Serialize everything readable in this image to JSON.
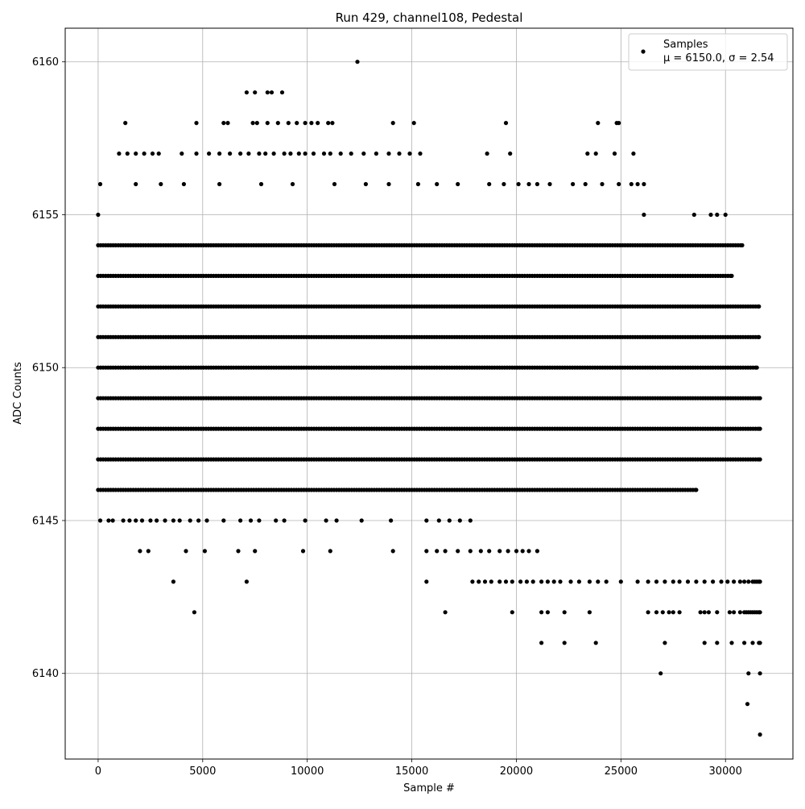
{
  "chart_data": {
    "type": "scatter",
    "title": "Run 429, channel108, Pedestal",
    "xlabel": "Sample #",
    "ylabel": "ADC Counts",
    "xlim": [
      -1575,
      33225
    ],
    "ylim": [
      6137.2,
      6161.1
    ],
    "xticks": [
      0,
      5000,
      10000,
      15000,
      20000,
      25000,
      30000
    ],
    "yticks": [
      6140,
      6145,
      6150,
      6155,
      6160
    ],
    "grid": true,
    "legend_position": "top-right",
    "marker_color": "#000000",
    "series": [
      {
        "name": "Samples",
        "stats_label": "μ = 6150.0, σ = 2.54"
      }
    ],
    "levels": [
      {
        "y": 6138,
        "x": [
          31650
        ]
      },
      {
        "y": 6139,
        "x": [
          31050
        ]
      },
      {
        "y": 6140,
        "x": [
          26900,
          31100,
          31650
        ]
      },
      {
        "y": 6141,
        "x": [
          21200,
          22300,
          23800,
          27100,
          29000,
          29600,
          30300,
          30900,
          31300,
          31600,
          31650
        ]
      },
      {
        "y": 6142,
        "x": [
          4600,
          16600,
          19800,
          21200,
          21500,
          22300,
          23500,
          26300,
          26700,
          27000,
          27300,
          27500,
          27800,
          28800,
          29000,
          29200,
          29600,
          30200,
          30400,
          30700,
          30900,
          31000,
          31100,
          31200,
          31300,
          31400,
          31500,
          31600,
          31650
        ]
      },
      {
        "y": 6143,
        "x": [
          3600,
          7100,
          15700,
          17900,
          18200,
          18500,
          18800,
          19200,
          19500,
          19800,
          20200,
          20500,
          20800,
          21200,
          21500,
          21800,
          22100,
          22600,
          23000,
          23500,
          23900,
          24300,
          25000,
          25800,
          26300,
          26700,
          27100,
          27500,
          27800,
          28200,
          28600,
          29000,
          29400,
          29800,
          30100,
          30400,
          30700,
          30900,
          31100,
          31300,
          31400,
          31500,
          31600,
          31650
        ]
      },
      {
        "y": 6144,
        "x": [
          2000,
          2400,
          4200,
          5100,
          6700,
          7500,
          9800,
          11100,
          14100,
          15700,
          16200,
          16600,
          17200,
          17800,
          18300,
          18700,
          19200,
          19600,
          20000,
          20300,
          20600,
          21000
        ]
      },
      {
        "y": 6145,
        "x": [
          100,
          500,
          700,
          1200,
          1500,
          1800,
          2100,
          2500,
          2800,
          3200,
          3600,
          3900,
          4400,
          4800,
          5200,
          6000,
          6800,
          7300,
          7700,
          8500,
          8900,
          9900,
          10900,
          11400,
          12600,
          14000,
          15700,
          16300,
          16800,
          17300,
          17800
        ]
      },
      {
        "y": 6146,
        "x": [
          0,
          28600
        ]
      },
      {
        "y": 6147,
        "x": [
          0,
          31650
        ]
      },
      {
        "y": 6148,
        "x": [
          0,
          31650
        ]
      },
      {
        "y": 6149,
        "x": [
          0,
          31650
        ]
      },
      {
        "y": 6150,
        "x": [
          0,
          31500
        ]
      },
      {
        "y": 6151,
        "x": [
          0,
          31600
        ]
      },
      {
        "y": 6152,
        "x": [
          0,
          31600
        ]
      },
      {
        "y": 6153,
        "x": [
          0,
          30300
        ]
      },
      {
        "y": 6154,
        "x": [
          0,
          30800
        ]
      },
      {
        "y": 6155,
        "x": [
          0,
          26100,
          28500,
          29300,
          29600,
          30000
        ]
      },
      {
        "y": 6156,
        "x": [
          100,
          1800,
          3000,
          4100,
          5800,
          7800,
          9300,
          11300,
          12800,
          13900,
          15300,
          16200,
          17200,
          18700,
          19400,
          20100,
          20600,
          21000,
          21600,
          22700,
          23300,
          24100,
          24900,
          25500,
          25800,
          26100
        ]
      },
      {
        "y": 6157,
        "x": [
          1000,
          1400,
          1800,
          2200,
          2600,
          2900,
          4000,
          4700,
          5300,
          5800,
          6300,
          6800,
          7200,
          7700,
          8000,
          8400,
          8900,
          9200,
          9600,
          9900,
          10300,
          10800,
          11100,
          11600,
          12100,
          12700,
          13300,
          13900,
          14400,
          14900,
          15400,
          18600,
          19700,
          23400,
          23800,
          24700,
          25600
        ]
      },
      {
        "y": 6158,
        "x": [
          1300,
          4700,
          6000,
          6200,
          7400,
          7600,
          8100,
          8600,
          9100,
          9500,
          9900,
          10200,
          10500,
          11000,
          11200,
          14100,
          15100,
          19500,
          23900,
          24800,
          24900
        ]
      },
      {
        "y": 6159,
        "x": [
          7100,
          7500,
          8100,
          8300,
          8800
        ]
      },
      {
        "y": 6160,
        "x": [
          12400
        ]
      }
    ]
  }
}
